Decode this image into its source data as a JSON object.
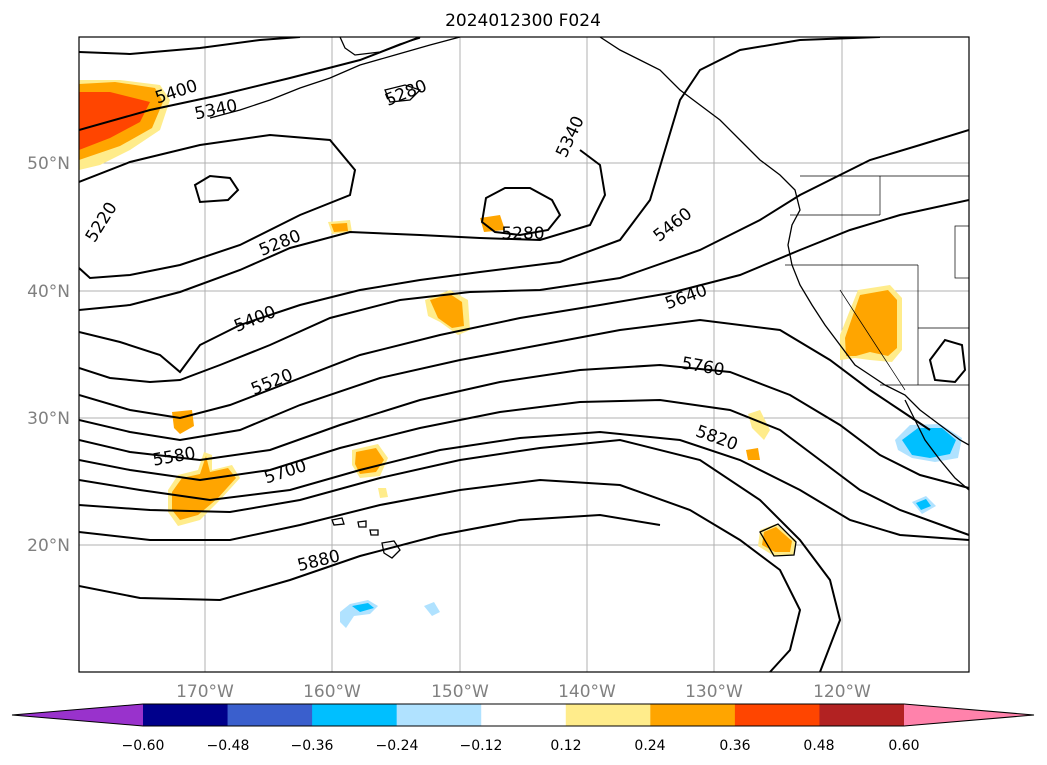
{
  "title": "2024012300 F024",
  "lat_labels": [
    "50°N",
    "40°N",
    "30°N",
    "20°N"
  ],
  "lon_labels": [
    "170°W",
    "160°W",
    "150°W",
    "140°W",
    "130°W",
    "120°W"
  ],
  "contour_labels": [
    "5400",
    "5340",
    "5280",
    "5220",
    "5280",
    "5400",
    "5520",
    "5580",
    "5700",
    "5880",
    "5340",
    "5280",
    "5460",
    "5640",
    "5760",
    "5820"
  ],
  "colorbar": {
    "ticks": [
      "−0.60",
      "−0.48",
      "−0.36",
      "−0.24",
      "−0.12",
      "0.12",
      "0.24",
      "0.36",
      "0.48",
      "0.60"
    ],
    "colors": [
      "#9932CC",
      "#00008B",
      "#3A5FCD",
      "#00BFFF",
      "#B0E2FF",
      "#FFFFFF",
      "#FFEC8B",
      "#FFA500",
      "#FF4500",
      "#B22222",
      "#FF82AB"
    ]
  }
}
